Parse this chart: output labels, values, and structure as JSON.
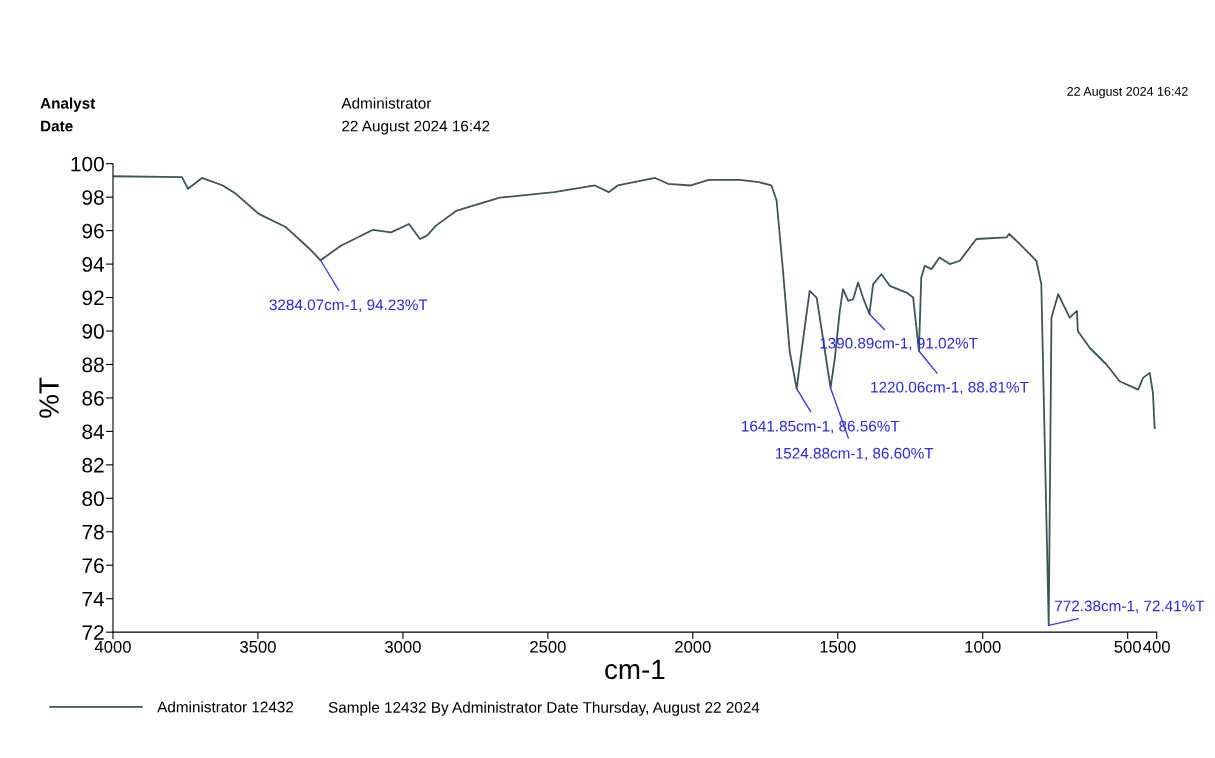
{
  "chart_data": {
    "type": "line",
    "xlabel": "cm-1",
    "ylabel": "%T",
    "xlim": [
      4000,
      400
    ],
    "ylim": [
      72,
      100
    ],
    "xticks": [
      4000,
      3500,
      3000,
      2500,
      2000,
      1500,
      1000,
      500,
      400
    ],
    "yticks": [
      72,
      74,
      76,
      78,
      80,
      82,
      84,
      86,
      88,
      90,
      92,
      94,
      96,
      98,
      100
    ],
    "grid": false,
    "legend": "bottom",
    "marker": "none",
    "line_style": "solid",
    "series": [
      {
        "name": "Administrator 12432",
        "color": "#3d5757",
        "x": [
          4000,
          3762,
          3741,
          3693,
          3621,
          3576,
          3497,
          3403,
          3324,
          3284.07,
          3214,
          3103,
          3041,
          2979,
          2941,
          2917,
          2886,
          2814,
          2666,
          2478,
          2338,
          2290,
          2259,
          2130,
          2086,
          2007,
          1945,
          1838,
          1772,
          1729,
          1711,
          1690,
          1666,
          1641.85,
          1625,
          1597,
          1573,
          1562,
          1524.88,
          1510,
          1493,
          1482,
          1464,
          1447,
          1430,
          1413,
          1390.89,
          1378,
          1349,
          1321,
          1263,
          1240,
          1220.06,
          1212,
          1200,
          1177,
          1149,
          1114,
          1079,
          1022,
          918,
          909,
          872,
          815,
          798,
          772.38,
          763,
          740,
          700,
          675,
          672,
          631,
          573,
          528,
          464,
          447,
          424,
          413,
          407
        ],
        "values": [
          99.25,
          99.2,
          98.5,
          99.15,
          98.7,
          98.2,
          97.0,
          96.2,
          94.95,
          94.23,
          95.1,
          96.05,
          95.9,
          96.4,
          95.5,
          95.7,
          96.3,
          97.2,
          97.97,
          98.3,
          98.7,
          98.3,
          98.7,
          99.15,
          98.8,
          98.7,
          99.04,
          99.04,
          98.9,
          98.7,
          97.8,
          93.8,
          88.8,
          86.56,
          88.8,
          92.4,
          92.0,
          90.8,
          86.6,
          88.4,
          91.2,
          92.5,
          91.8,
          91.9,
          92.9,
          92.0,
          91.02,
          92.8,
          93.4,
          92.7,
          92.3,
          92.0,
          88.81,
          93.2,
          93.9,
          93.7,
          94.4,
          94.0,
          94.2,
          95.5,
          95.6,
          95.8,
          95.2,
          94.2,
          92.8,
          72.41,
          90.8,
          92.2,
          90.8,
          91.2,
          90.0,
          89.0,
          88.0,
          87.0,
          86.5,
          87.2,
          87.5,
          86.3,
          84.2
        ]
      }
    ],
    "annotations": [
      {
        "text": "3284.07cm-1, 94.23%T",
        "x": 3284.07,
        "y": 94.23
      },
      {
        "text": "1641.85cm-1, 86.56%T",
        "x": 1641.85,
        "y": 86.56
      },
      {
        "text": "1524.88cm-1, 86.60%T",
        "x": 1524.88,
        "y": 86.6
      },
      {
        "text": "1390.89cm-1, 91.02%T",
        "x": 1390.89,
        "y": 91.02
      },
      {
        "text": "1220.06cm-1, 88.81%T",
        "x": 1220.06,
        "y": 88.81
      },
      {
        "text": "772.38cm-1, 72.41%T",
        "x": 772.38,
        "y": 72.41
      },
      "Analyst",
      "Administrator",
      "Date",
      "22 August 2024 16:42",
      "22 August 2024 16:42",
      "Sample 12432 By Administrator Date Thursday, August 22 2024"
    ]
  }
}
